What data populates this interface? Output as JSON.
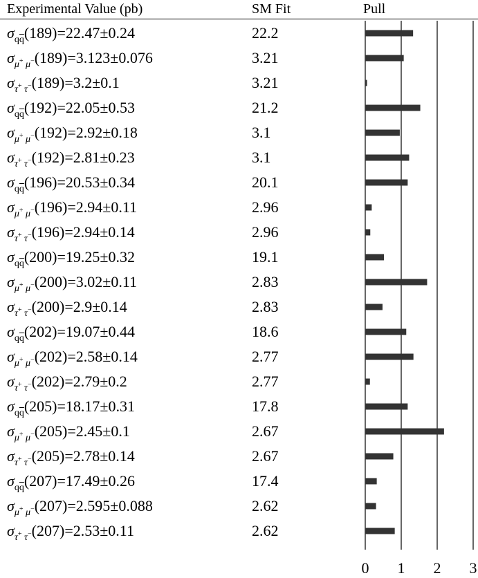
{
  "headers": {
    "experimental": "Experimental Value (pb)",
    "sm_fit": "SM Fit",
    "pull": "Pull"
  },
  "symbols": {
    "sigma": "σ",
    "qq": "q q",
    "mumu": "μ⁺ μ⁻",
    "tautau": "τ⁺ τ⁻"
  },
  "chart_data": {
    "type": "bar",
    "orientation": "horizontal",
    "xlabel": "",
    "xlim": [
      0,
      3
    ],
    "xticks": [
      "0",
      "1",
      "2",
      "3"
    ],
    "grid": true,
    "color": "#333333",
    "categories": [
      "σqq(189)=22.47±0.24",
      "σμ+μ-(189)=3.123±0.076",
      "στ+τ-(189)=3.2±0.1",
      "σqq(192)=22.05±0.53",
      "σμ+μ-(192)=2.92±0.18",
      "στ+τ-(192)=2.81±0.23",
      "σqq(196)=20.53±0.34",
      "σμ+μ-(196)=2.94±0.11",
      "στ+τ-(196)=2.94±0.14",
      "σqq(200)=19.25±0.32",
      "σμ+μ-(200)=3.02±0.11",
      "στ+τ-(200)=2.9±0.14",
      "σqq(202)=19.07±0.44",
      "σμ+μ-(202)=2.58±0.14",
      "στ+τ-(202)=2.79±0.2",
      "σqq(205)=18.17±0.31",
      "σμ+μ-(205)=2.45±0.1",
      "στ+τ-(205)=2.78±0.14",
      "σqq(207)=17.49±0.26",
      "σμ+μ-(207)=2.595±0.088",
      "στ+τ-(207)=2.53±0.11"
    ],
    "values": [
      1.33,
      1.07,
      0.05,
      1.53,
      0.96,
      1.22,
      1.18,
      0.18,
      0.14,
      0.52,
      1.72,
      0.48,
      1.14,
      1.34,
      0.13,
      1.18,
      2.19,
      0.78,
      0.32,
      0.3,
      0.82
    ],
    "rows": [
      {
        "process": "qq",
        "energy": "189",
        "value": "22.47±0.24",
        "fit": "22.2"
      },
      {
        "process": "mumu",
        "energy": "189",
        "value": "3.123±0.076",
        "fit": "3.21"
      },
      {
        "process": "tautau",
        "energy": "189",
        "value": "3.2±0.1",
        "fit": "3.21"
      },
      {
        "process": "qq",
        "energy": "192",
        "value": "22.05±0.53",
        "fit": "21.2"
      },
      {
        "process": "mumu",
        "energy": "192",
        "value": "2.92±0.18",
        "fit": "3.1"
      },
      {
        "process": "tautau",
        "energy": "192",
        "value": "2.81±0.23",
        "fit": "3.1"
      },
      {
        "process": "qq",
        "energy": "196",
        "value": "20.53±0.34",
        "fit": "20.1"
      },
      {
        "process": "mumu",
        "energy": "196",
        "value": "2.94±0.11",
        "fit": "2.96"
      },
      {
        "process": "tautau",
        "energy": "196",
        "value": "2.94±0.14",
        "fit": "2.96"
      },
      {
        "process": "qq",
        "energy": "200",
        "value": "19.25±0.32",
        "fit": "19.1"
      },
      {
        "process": "mumu",
        "energy": "200",
        "value": "3.02±0.11",
        "fit": "2.83"
      },
      {
        "process": "tautau",
        "energy": "200",
        "value": "2.9±0.14",
        "fit": "2.83"
      },
      {
        "process": "qq",
        "energy": "202",
        "value": "19.07±0.44",
        "fit": "18.6"
      },
      {
        "process": "mumu",
        "energy": "202",
        "value": "2.58±0.14",
        "fit": "2.77"
      },
      {
        "process": "tautau",
        "energy": "202",
        "value": "2.79±0.2",
        "fit": "2.77"
      },
      {
        "process": "qq",
        "energy": "205",
        "value": "18.17±0.31",
        "fit": "17.8"
      },
      {
        "process": "mumu",
        "energy": "205",
        "value": "2.45±0.1",
        "fit": "2.67"
      },
      {
        "process": "tautau",
        "energy": "205",
        "value": "2.78±0.14",
        "fit": "2.67"
      },
      {
        "process": "qq",
        "energy": "207",
        "value": "17.49±0.26",
        "fit": "17.4"
      },
      {
        "process": "mumu",
        "energy": "207",
        "value": "2.595±0.088",
        "fit": "2.62"
      },
      {
        "process": "tautau",
        "energy": "207",
        "value": "2.53±0.11",
        "fit": "2.62"
      }
    ]
  }
}
